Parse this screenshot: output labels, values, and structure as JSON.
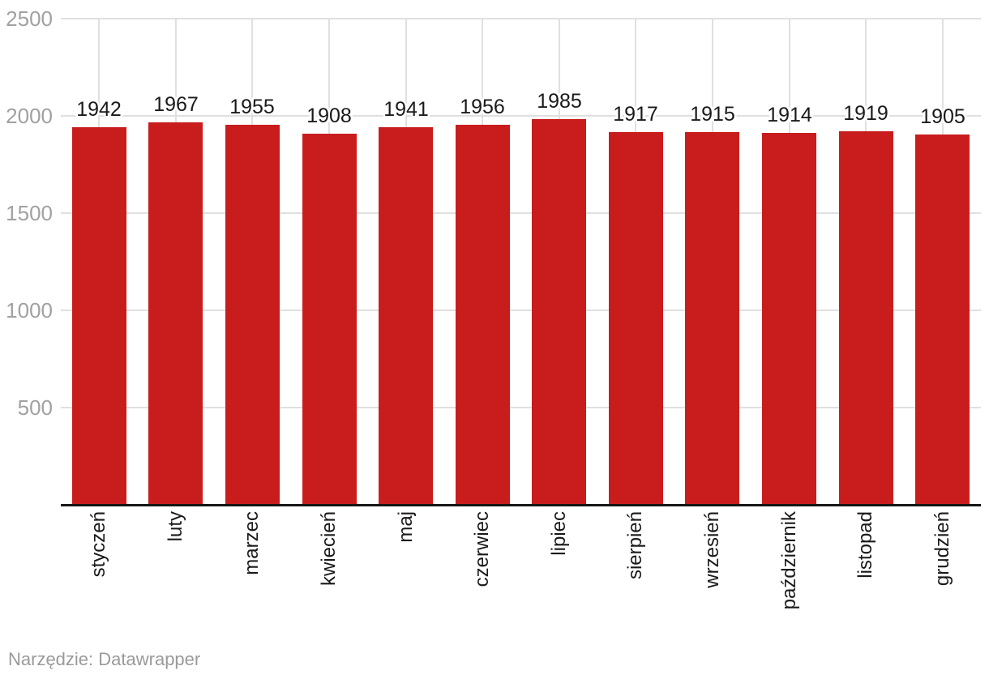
{
  "chart_data": {
    "type": "bar",
    "title": "",
    "xlabel": "",
    "ylabel": "",
    "categories": [
      "styczeń",
      "luty",
      "marzec",
      "kwiecień",
      "maj",
      "czerwiec",
      "lipiec",
      "sierpień",
      "wrzesień",
      "październik",
      "listopad",
      "grudzień"
    ],
    "values": [
      1942,
      1967,
      1955,
      1908,
      1941,
      1956,
      1985,
      1917,
      1915,
      1914,
      1919,
      1905
    ],
    "ylim": [
      0,
      2500
    ],
    "yticks": [
      500,
      1000,
      1500,
      2000,
      2500
    ],
    "grid": true,
    "legend": "none",
    "value_labels_shown": true,
    "bar_color": "#c91d1d",
    "axis_line_color": "#161616",
    "gridline_color": "#e0e0e0",
    "y_tick_label_color": "#a1a1a1",
    "value_label_color": "#1a1a1a",
    "category_label_color": "#1a1a1a"
  },
  "footer": {
    "prefix": "Narzędzie: ",
    "tool_link": "Datawrapper",
    "color": "#9a9a9a"
  }
}
